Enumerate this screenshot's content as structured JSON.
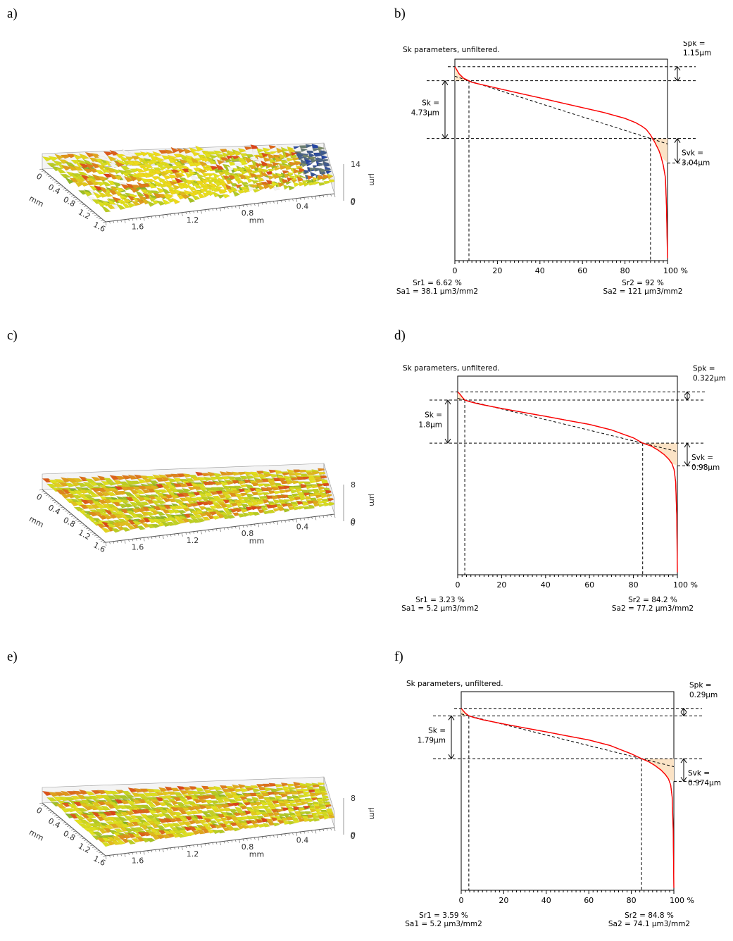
{
  "panel_labels": [
    "a)",
    "b)",
    "c)",
    "d)",
    "e)",
    "f)"
  ],
  "colors": {
    "surface_low": "#1d3fa8",
    "surface_mid": "#e3e21e",
    "surface_high": "#d9361a",
    "surface_peak": "#f2f2f2",
    "curve": "#ff0000",
    "fill": "#fbe3c6"
  },
  "surface_plots": [
    {
      "label": "a)",
      "z_label": "µm",
      "z_ticks": [
        "14",
        "0"
      ],
      "x_label": "mm",
      "x_ticks": [
        "1.6",
        "1.2",
        "0.8",
        "0.4",
        "0"
      ],
      "y_label": "mm",
      "y_ticks": [
        "0",
        "0.4",
        "0.8",
        "1.2",
        "1.6"
      ]
    },
    {
      "label": "c)",
      "z_label": "µm",
      "z_ticks": [
        "8",
        "0"
      ],
      "x_label": "mm",
      "x_ticks": [
        "1.6",
        "1.2",
        "0.8",
        "0.4",
        "0"
      ],
      "y_label": "mm",
      "y_ticks": [
        "0",
        "0.4",
        "0.8",
        "1.2",
        "1.6"
      ]
    },
    {
      "label": "e)",
      "z_label": "µm",
      "z_ticks": [
        "8",
        "0"
      ],
      "x_label": "mm",
      "x_ticks": [
        "1.6",
        "1.2",
        "0.8",
        "0.4",
        "0"
      ],
      "y_label": "mm",
      "y_ticks": [
        "0",
        "0.4",
        "0.8",
        "1.2",
        "1.6"
      ]
    }
  ],
  "chart_data": [
    {
      "type": "line",
      "panel": "b)",
      "title": "Sk parameters, unfiltered.",
      "xlim": [
        0,
        100
      ],
      "x_ticks": [
        "0",
        "20",
        "40",
        "60",
        "80",
        "100 %"
      ],
      "sk_label": [
        "Sk =",
        "4.73µm"
      ],
      "spk_label": [
        "Spk =",
        "1.15µm"
      ],
      "svk_label": [
        "Svk =",
        "3.04µm"
      ],
      "sr1": 6.62,
      "sr2": 92,
      "sr1_text": "Sr1 = 6.62 %",
      "sa1_text": "Sa1 = 38.1 µm3/mm2",
      "sr2_text": "Sr2 = 92 %",
      "sa2_text": "Sa2 = 121 µm3/mm2",
      "curve": {
        "x": [
          0,
          1,
          2,
          4,
          6.62,
          8,
          10,
          20,
          30,
          40,
          50,
          60,
          70,
          80,
          85,
          88,
          90,
          92,
          94,
          96,
          97,
          98,
          99,
          99.5,
          100
        ],
        "y": [
          5.88,
          5.6,
          5.3,
          4.95,
          4.73,
          4.6,
          4.52,
          4.12,
          3.72,
          3.33,
          2.93,
          2.53,
          2.13,
          1.65,
          1.3,
          1.0,
          0.75,
          0.3,
          -0.3,
          -1.0,
          -1.5,
          -2.2,
          -3.2,
          -5.5,
          -9.8
        ]
      },
      "ylim": [
        -10,
        6.5
      ]
    },
    {
      "type": "line",
      "panel": "d)",
      "title": "Sk parameters, unfiltered.",
      "xlim": [
        0,
        100
      ],
      "x_ticks": [
        "0",
        "20",
        "40",
        "60",
        "80",
        "100 %"
      ],
      "sk_label": [
        "Sk =",
        "1.8µm"
      ],
      "spk_label": [
        "Spk =",
        "0.322µm"
      ],
      "svk_label": [
        "Svk =",
        "0.98µm"
      ],
      "sr1": 3.23,
      "sr2": 84.2,
      "sr1_text": "Sr1 = 3.23 %",
      "sa1_text": "Sa1 = 5.2 µm3/mm2",
      "sr2_text": "Sr2 = 84.2 %",
      "sa2_text": "Sa2 = 77.2 µm3/mm2",
      "curve": {
        "x": [
          0,
          1,
          2,
          3.23,
          6,
          10,
          20,
          30,
          40,
          50,
          60,
          70,
          80,
          84.2,
          88,
          91,
          94,
          96,
          97.5,
          98.5,
          99.2,
          99.7,
          100
        ],
        "y": [
          2.14,
          2.05,
          1.93,
          1.8,
          1.72,
          1.63,
          1.45,
          1.28,
          1.12,
          0.95,
          0.78,
          0.55,
          0.22,
          0.0,
          -0.12,
          -0.28,
          -0.48,
          -0.66,
          -0.85,
          -1.1,
          -1.6,
          -3.0,
          -5.4
        ]
      },
      "ylim": [
        -5.5,
        2.8
      ]
    },
    {
      "type": "line",
      "panel": "f)",
      "title": "Sk parameters, unfiltered.",
      "xlim": [
        0,
        100
      ],
      "x_ticks": [
        "0",
        "20",
        "40",
        "60",
        "80",
        "100 %"
      ],
      "sk_label": [
        "Sk =",
        "1.79µm"
      ],
      "spk_label": [
        "Spk =",
        "0.29µm"
      ],
      "svk_label": [
        "Svk =",
        "0.974µm"
      ],
      "sr1": 3.59,
      "sr2": 84.8,
      "sr1_text": "Sr1 = 3.59 %",
      "sa1_text": "Sa1 = 5.2 µm3/mm2",
      "sr2_text": "Sr2 = 84.8 %",
      "sa2_text": "Sa2 = 74.1 µm3/mm2",
      "curve": {
        "x": [
          0,
          1,
          2,
          3.59,
          6,
          10,
          20,
          30,
          40,
          50,
          60,
          70,
          80,
          84.8,
          88,
          91,
          94,
          96,
          97.5,
          98.5,
          99.2,
          99.7,
          100
        ],
        "y": [
          2.1,
          2.0,
          1.9,
          1.79,
          1.72,
          1.63,
          1.45,
          1.28,
          1.12,
          0.95,
          0.78,
          0.55,
          0.2,
          0.0,
          -0.12,
          -0.28,
          -0.48,
          -0.66,
          -0.85,
          -1.1,
          -1.6,
          -3.0,
          -5.4
        ]
      },
      "ylim": [
        -5.5,
        2.8
      ]
    }
  ]
}
